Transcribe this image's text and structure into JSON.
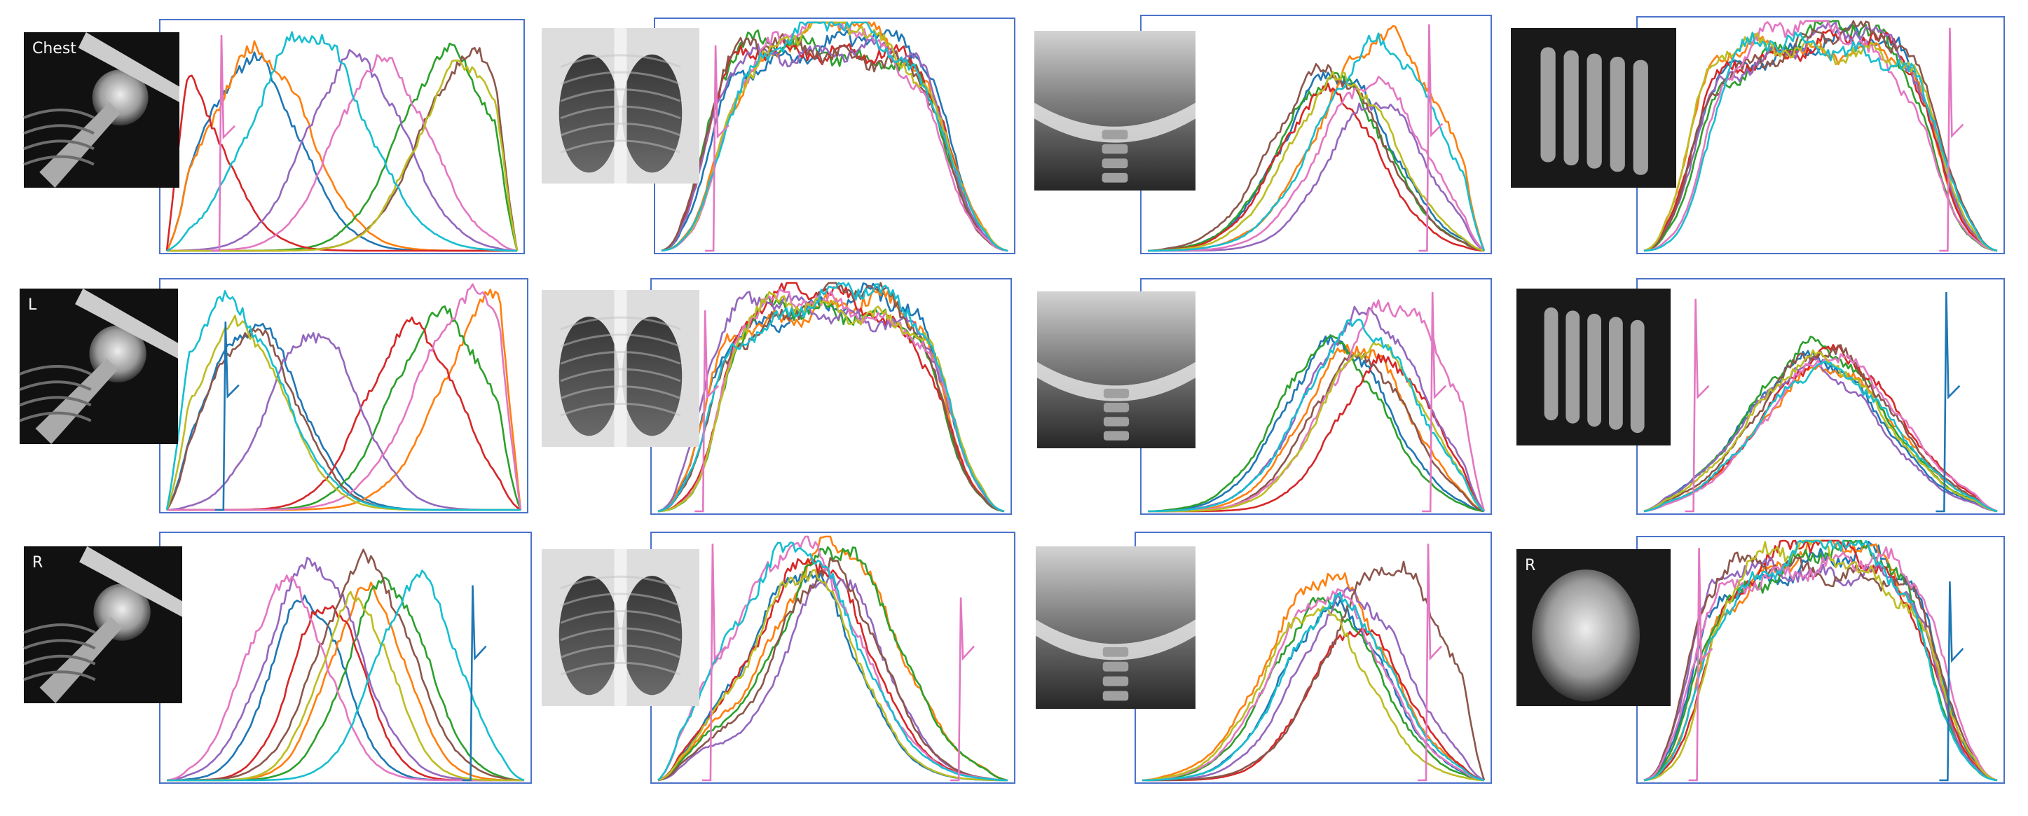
{
  "colors": {
    "frame": "#4a72c9",
    "series": [
      "#1f77b4",
      "#ff7f0e",
      "#2ca02c",
      "#d62728",
      "#9467bd",
      "#8c564b",
      "#e377c2",
      "#bcbd22",
      "#17becf"
    ]
  },
  "panels": [
    {
      "id": "r1c1",
      "xray": {
        "kind": "shoulder",
        "text": "Chest"
      },
      "mode": "peak",
      "seed": 11,
      "kinks": [],
      "spike": {
        "pos": 0.15,
        "h": 0.95,
        "c": 6
      }
    },
    {
      "id": "r1c2",
      "xray": {
        "kind": "chest",
        "text": ""
      },
      "mode": "plateau",
      "seed": 12,
      "kinks": [
        {
          "pos": 0.15,
          "h": 0.9,
          "c": 6
        }
      ],
      "spike": null
    },
    {
      "id": "r1c3",
      "xray": {
        "kind": "cspine",
        "text": ""
      },
      "mode": "late",
      "seed": 13,
      "kinks": [],
      "spike": {
        "pos": 0.83,
        "h": 0.98,
        "c": 6
      }
    },
    {
      "id": "r1c4",
      "xray": {
        "kind": "foot",
        "text": ""
      },
      "mode": "plateau",
      "seed": 14,
      "kinks": [],
      "spike": {
        "pos": 0.86,
        "h": 0.97,
        "c": 6
      }
    },
    {
      "id": "r2c1",
      "xray": {
        "kind": "shoulder",
        "text": "L"
      },
      "mode": "peak",
      "seed": 21,
      "kinks": [],
      "spike": {
        "pos": 0.16,
        "h": 0.83,
        "c": 0
      }
    },
    {
      "id": "r2c2",
      "xray": {
        "kind": "chest",
        "text": ""
      },
      "mode": "plateau",
      "seed": 22,
      "kinks": [
        {
          "pos": 0.13,
          "h": 0.88,
          "c": 6
        }
      ],
      "spike": null
    },
    {
      "id": "r2c3",
      "xray": {
        "kind": "cspine",
        "text": ""
      },
      "mode": "late",
      "seed": 23,
      "kinks": [],
      "spike": {
        "pos": 0.84,
        "h": 0.96,
        "c": 6
      }
    },
    {
      "id": "r2c4",
      "xray": {
        "kind": "foot",
        "text": ""
      },
      "mode": "wide",
      "seed": 24,
      "kinks": [],
      "spike": {
        "pos": 0.14,
        "h": 0.93,
        "c": 6
      },
      "spike2": {
        "pos": 0.85,
        "h": 0.96,
        "c": 0
      }
    },
    {
      "id": "r3c1",
      "xray": {
        "kind": "shoulder",
        "text": "R"
      },
      "mode": "spread",
      "seed": 31,
      "kinks": [],
      "spike": {
        "pos": 0.85,
        "h": 0.8,
        "c": 0
      }
    },
    {
      "id": "r3c2",
      "xray": {
        "kind": "chest",
        "text": ""
      },
      "mode": "early",
      "seed": 32,
      "kinks": [
        {
          "pos": 0.15,
          "h": 0.97,
          "c": 6
        }
      ],
      "spike": {
        "pos": 0.86,
        "h": 0.75,
        "c": 6
      }
    },
    {
      "id": "r3c3",
      "xray": {
        "kind": "cspine",
        "text": ""
      },
      "mode": "late",
      "seed": 33,
      "kinks": [],
      "spike": {
        "pos": 0.83,
        "h": 0.97,
        "c": 6
      }
    },
    {
      "id": "r3c4",
      "xray": {
        "kind": "ankle",
        "text": "R"
      },
      "mode": "plateau",
      "seed": 34,
      "kinks": [],
      "spike": {
        "pos": 0.15,
        "h": 0.97,
        "c": 6
      },
      "spike2": {
        "pos": 0.86,
        "h": 0.83,
        "c": 0
      }
    }
  ]
}
